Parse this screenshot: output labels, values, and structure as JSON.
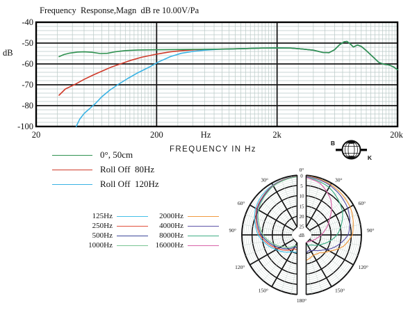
{
  "title": "Frequency  Response,Magn  dB re 10.00V/Pa",
  "freq_chart": {
    "ylabel": "dB",
    "yticks": [
      {
        "label": "-40",
        "db": -40
      },
      {
        "label": "-50",
        "db": -50
      },
      {
        "label": "-60",
        "db": -60
      },
      {
        "label": "-70",
        "db": -70
      },
      {
        "label": "-80",
        "db": -80
      },
      {
        "label": "-100",
        "db": -100
      }
    ],
    "xticks": [
      {
        "label": "20",
        "f": 20
      },
      {
        "label": "200",
        "f": 200
      },
      {
        "label": "Hz",
        "f": 512
      },
      {
        "label": "2k",
        "f": 2000
      },
      {
        "label": "20k",
        "f": 19600
      }
    ],
    "xlabel": "FREQUENCY IN Hz",
    "grid": {
      "minor_color": "#b9c9c6",
      "major_color": "#161616",
      "border_color": "#000000"
    }
  },
  "bk_logo": {
    "b": "B",
    "k": "K"
  },
  "polar_chart": {
    "radial_ticks": [
      "0",
      "5",
      "10",
      "15",
      "20",
      "25"
    ],
    "center_label": "dB",
    "angle_labels": [
      "0°",
      "30°",
      "60°",
      "90°",
      "120°",
      "150°",
      "180°"
    ]
  },
  "chart_data": [
    {
      "type": "line",
      "title": "Frequency Response,Magn dB re 10.00V/Pa",
      "xlabel": "FREQUENCY IN Hz",
      "ylabel": "dB",
      "xscale": "log",
      "xlim": [
        20,
        20000
      ],
      "ylim": [
        -100,
        -40
      ],
      "ytick_values": [
        -40,
        -50,
        -60,
        -70,
        -80,
        -100
      ],
      "legend_position": "below-left",
      "grid": true,
      "series": [
        {
          "name": "0°, 50cm",
          "color": "#2f9150",
          "points": [
            [
              31,
              -56.5
            ],
            [
              34,
              -55.5
            ],
            [
              38,
              -54.8
            ],
            [
              44,
              -54.3
            ],
            [
              50,
              -54.2
            ],
            [
              58,
              -54.4
            ],
            [
              68,
              -55
            ],
            [
              78,
              -54.9
            ],
            [
              90,
              -54.2
            ],
            [
              110,
              -53.6
            ],
            [
              140,
              -53.3
            ],
            [
              200,
              -53.2
            ],
            [
              300,
              -53.1
            ],
            [
              450,
              -53
            ],
            [
              700,
              -52.9
            ],
            [
              1000,
              -52.7
            ],
            [
              1500,
              -52.4
            ],
            [
              2000,
              -52.3
            ],
            [
              2600,
              -52.4
            ],
            [
              3200,
              -52.8
            ],
            [
              4000,
              -53.4
            ],
            [
              4800,
              -54.5
            ],
            [
              5400,
              -54.6
            ],
            [
              6000,
              -53.2
            ],
            [
              6600,
              -50.8
            ],
            [
              7200,
              -49.4
            ],
            [
              7600,
              -49.2
            ],
            [
              8100,
              -50.4
            ],
            [
              8600,
              -51.9
            ],
            [
              9300,
              -50.9
            ],
            [
              10000,
              -51.6
            ],
            [
              11000,
              -53.6
            ],
            [
              12500,
              -56.6
            ],
            [
              14000,
              -59.3
            ],
            [
              15500,
              -60.2
            ],
            [
              17000,
              -60.5
            ],
            [
              18500,
              -61.4
            ],
            [
              20000,
              -62.8
            ]
          ]
        },
        {
          "name": "Roll Off  80Hz",
          "color": "#cf3a2a",
          "points": [
            [
              31,
              -75
            ],
            [
              35,
              -72
            ],
            [
              42,
              -69.8
            ],
            [
              50,
              -67.4
            ],
            [
              60,
              -65.2
            ],
            [
              72,
              -63.2
            ],
            [
              85,
              -61.4
            ],
            [
              100,
              -60
            ],
            [
              120,
              -58.4
            ],
            [
              150,
              -56.8
            ],
            [
              200,
              -55.3
            ],
            [
              260,
              -54.2
            ],
            [
              330,
              -53.6
            ],
            [
              420,
              -53.2
            ],
            [
              550,
              -53
            ],
            [
              700,
              -52.9
            ],
            [
              1000,
              -52.7
            ],
            [
              1500,
              -52.4
            ],
            [
              2000,
              -52.3
            ],
            [
              2600,
              -52.4
            ],
            [
              3200,
              -52.8
            ],
            [
              4000,
              -53.4
            ],
            [
              4800,
              -54.5
            ],
            [
              5400,
              -54.6
            ],
            [
              6000,
              -53.2
            ],
            [
              6600,
              -50.8
            ],
            [
              7200,
              -49.4
            ],
            [
              7600,
              -49.2
            ],
            [
              8100,
              -50.4
            ],
            [
              8600,
              -51.9
            ],
            [
              9300,
              -50.9
            ],
            [
              10000,
              -51.6
            ],
            [
              11000,
              -53.6
            ],
            [
              12500,
              -56.6
            ],
            [
              14000,
              -59.3
            ],
            [
              15500,
              -60.2
            ],
            [
              17000,
              -60.5
            ],
            [
              18500,
              -61.4
            ],
            [
              20000,
              -62.8
            ]
          ]
        },
        {
          "name": "Roll Off  120Hz",
          "color": "#38b2e4",
          "points": [
            [
              43,
              -100
            ],
            [
              46,
              -93
            ],
            [
              50,
              -87.5
            ],
            [
              56,
              -82.5
            ],
            [
              62,
              -79
            ],
            [
              70,
              -75.8
            ],
            [
              82,
              -72.5
            ],
            [
              95,
              -70
            ],
            [
              115,
              -67
            ],
            [
              140,
              -64.2
            ],
            [
              170,
              -61.8
            ],
            [
              210,
              -58.9
            ],
            [
              260,
              -56.5
            ],
            [
              320,
              -54.9
            ],
            [
              400,
              -54
            ],
            [
              500,
              -53.4
            ],
            [
              650,
              -53
            ],
            [
              850,
              -52.8
            ],
            [
              1000,
              -52.7
            ],
            [
              1500,
              -52.4
            ],
            [
              2000,
              -52.3
            ],
            [
              2600,
              -52.4
            ],
            [
              3200,
              -52.8
            ],
            [
              4000,
              -53.4
            ],
            [
              4800,
              -54.5
            ],
            [
              5400,
              -54.6
            ],
            [
              6000,
              -53.2
            ],
            [
              6600,
              -50.8
            ],
            [
              7200,
              -49.4
            ],
            [
              7600,
              -49.2
            ],
            [
              8100,
              -50.4
            ],
            [
              8600,
              -51.9
            ],
            [
              9300,
              -50.9
            ],
            [
              10000,
              -51.6
            ],
            [
              11000,
              -53.6
            ],
            [
              12500,
              -56.6
            ],
            [
              14000,
              -59.3
            ],
            [
              15500,
              -60.2
            ],
            [
              17000,
              -60.5
            ],
            [
              18500,
              -61.4
            ],
            [
              20000,
              -62.8
            ]
          ]
        }
      ]
    },
    {
      "type": "polar",
      "unit": "dB attenuation (0 dB at outer ring, 25 dB at center)",
      "radial_range": [
        0,
        25
      ],
      "radial_tick_step": 5,
      "angle_labels_deg": [
        0,
        30,
        60,
        90,
        120,
        150,
        180
      ],
      "layout": "split halves: low frequencies on left half, high frequencies on right half",
      "series": [
        {
          "name": "125Hz",
          "color": "#45c0e8",
          "side": "left",
          "points": [
            [
              0,
              0.4
            ],
            [
              30,
              1
            ],
            [
              45,
              1.8
            ],
            [
              60,
              3.2
            ],
            [
              90,
              8
            ],
            [
              120,
              15
            ],
            [
              150,
              20
            ],
            [
              180,
              21
            ]
          ]
        },
        {
          "name": "250Hz",
          "color": "#e2503c",
          "side": "left",
          "points": [
            [
              0,
              0.4
            ],
            [
              30,
              1.2
            ],
            [
              60,
              3.8
            ],
            [
              90,
              8.8
            ],
            [
              120,
              16
            ],
            [
              150,
              21.5
            ],
            [
              180,
              22.5
            ]
          ]
        },
        {
          "name": "500Hz",
          "color": "#3c479a",
          "side": "left",
          "points": [
            [
              0,
              0.5
            ],
            [
              30,
              1.4
            ],
            [
              60,
              4.2
            ],
            [
              90,
              9.6
            ],
            [
              120,
              17
            ],
            [
              150,
              22.5
            ],
            [
              180,
              23.5
            ]
          ]
        },
        {
          "name": "1000Hz",
          "color": "#79c492",
          "side": "left",
          "points": [
            [
              0,
              0.5
            ],
            [
              30,
              1.6
            ],
            [
              60,
              4.8
            ],
            [
              90,
              10.4
            ],
            [
              120,
              18
            ],
            [
              150,
              23.5
            ],
            [
              180,
              24
            ]
          ]
        },
        {
          "name": "2000Hz",
          "color": "#f09a40",
          "side": "right",
          "points": [
            [
              0,
              0.3
            ],
            [
              30,
              0.8
            ],
            [
              60,
              1.8
            ],
            [
              90,
              4.5
            ],
            [
              105,
              8
            ],
            [
              120,
              13.5
            ],
            [
              135,
              17
            ],
            [
              150,
              18
            ],
            [
              165,
              17
            ],
            [
              180,
              16
            ]
          ]
        },
        {
          "name": "4000Hz",
          "color": "#5e54a8",
          "side": "right",
          "points": [
            [
              0,
              0.4
            ],
            [
              30,
              1.3
            ],
            [
              60,
              3.2
            ],
            [
              90,
              6.5
            ],
            [
              110,
              12
            ],
            [
              125,
              16.5
            ],
            [
              140,
              19.5
            ],
            [
              155,
              21
            ],
            [
              170,
              20
            ],
            [
              180,
              19
            ]
          ]
        },
        {
          "name": "8000Hz",
          "color": "#3fae85",
          "side": "right",
          "points": [
            [
              0,
              0.6
            ],
            [
              30,
              2.4
            ],
            [
              60,
              6.2
            ],
            [
              90,
              12
            ],
            [
              115,
              18.5
            ],
            [
              135,
              22.5
            ],
            [
              155,
              24
            ],
            [
              180,
              23
            ]
          ]
        },
        {
          "name": "16000Hz",
          "color": "#d863a8",
          "side": "right",
          "points": [
            [
              0,
              0.6
            ],
            [
              20,
              2.5
            ],
            [
              40,
              7
            ],
            [
              60,
              13.5
            ],
            [
              80,
              18
            ],
            [
              100,
              21.5
            ],
            [
              120,
              23.8
            ],
            [
              140,
              25
            ],
            [
              160,
              25
            ],
            [
              180,
              24.5
            ]
          ]
        }
      ]
    }
  ]
}
